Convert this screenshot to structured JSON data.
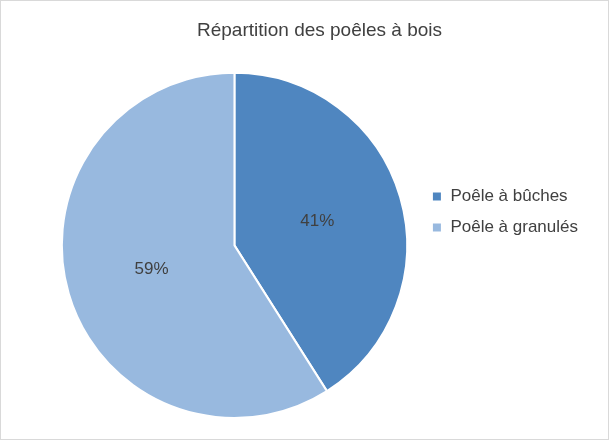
{
  "chart_data": {
    "type": "pie",
    "title": "Répartition des poêles à bois",
    "categories": [
      "Poêle à bûches",
      "Poêle à granulés"
    ],
    "values": [
      41,
      59
    ],
    "value_labels": [
      "41%",
      "59%"
    ],
    "colors": [
      "#4f86c0",
      "#98b9df"
    ],
    "legend": "right",
    "data_labels": true
  }
}
